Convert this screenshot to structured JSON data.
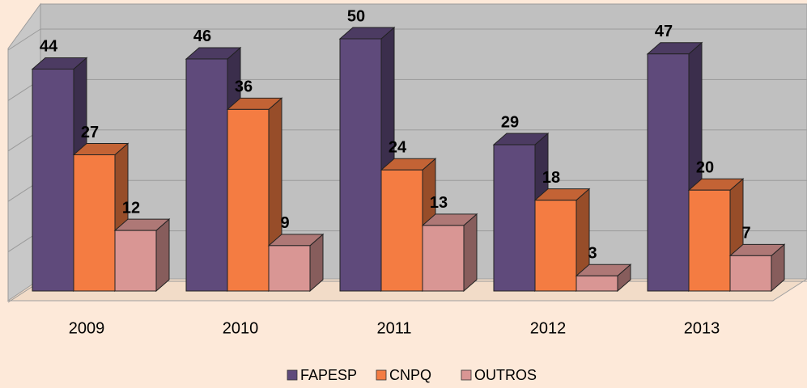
{
  "chart_data": {
    "type": "bar3d",
    "categories": [
      "2009",
      "2010",
      "2011",
      "2012",
      "2013"
    ],
    "series": [
      {
        "name": "FAPESP",
        "color": "#5f4a7b",
        "values": [
          44,
          46,
          50,
          29,
          47
        ]
      },
      {
        "name": "CNPQ",
        "color": "#f47c42",
        "values": [
          27,
          36,
          24,
          18,
          20
        ]
      },
      {
        "name": "OUTROS",
        "color": "#d99694",
        "values": [
          12,
          9,
          13,
          3,
          7
        ]
      }
    ],
    "ylim": [
      0,
      50
    ],
    "yticks": [
      0,
      10,
      20,
      30,
      40,
      50
    ],
    "grid": true,
    "legend": "bottom"
  }
}
